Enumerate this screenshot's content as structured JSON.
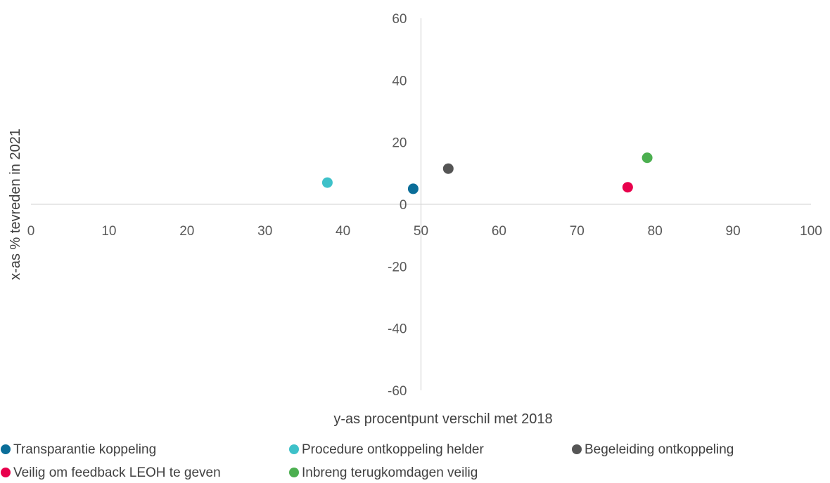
{
  "chart_data": {
    "type": "scatter",
    "xlabel": "y-as procentpunt verschil met 2018",
    "ylabel": "x-as % tevreden in 2021",
    "xlim": [
      0,
      100
    ],
    "ylim": [
      -60,
      60
    ],
    "x_ticks": [
      0,
      10,
      20,
      30,
      40,
      50,
      60,
      70,
      80,
      90,
      100
    ],
    "y_ticks": [
      -60,
      -40,
      -20,
      0,
      20,
      40,
      60
    ],
    "x_tick_labels": [
      "0",
      "10",
      "20",
      "30",
      "40",
      "50",
      "60",
      "70",
      "80",
      "90",
      "100"
    ],
    "y_tick_labels": [
      "-60",
      "-40",
      "-20",
      "0",
      "20",
      "40",
      "60"
    ],
    "legend_position": "bottom",
    "grid": false,
    "series": [
      {
        "name": "Transparantie koppeling",
        "color": "#0b6e99",
        "x": [
          49
        ],
        "y": [
          5
        ]
      },
      {
        "name": "Procedure ontkoppeling helder",
        "color": "#3ec1c9",
        "x": [
          38
        ],
        "y": [
          7
        ]
      },
      {
        "name": "Begeleiding ontkoppeling",
        "color": "#555555",
        "x": [
          53.5
        ],
        "y": [
          11.5
        ]
      },
      {
        "name": "Veilig om feedback LEOH te geven",
        "color": "#e8004c",
        "x": [
          76.5
        ],
        "y": [
          5.5
        ]
      },
      {
        "name": "Inbreng terugkomdagen veilig",
        "color": "#4caf50",
        "x": [
          79
        ],
        "y": [
          15
        ]
      }
    ]
  }
}
